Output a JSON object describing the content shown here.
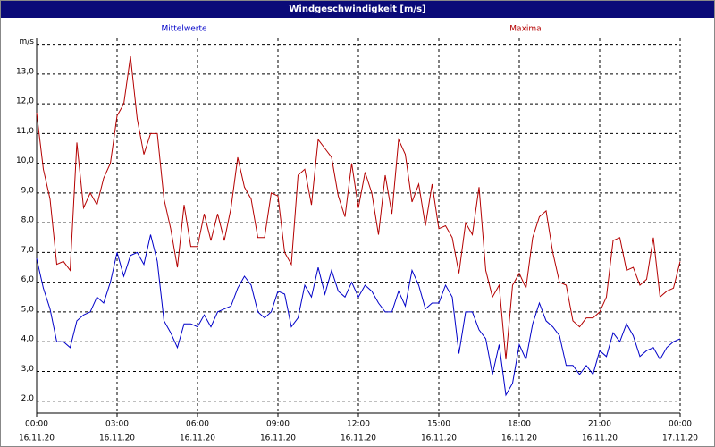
{
  "chart_data": {
    "type": "line",
    "title": "Windgeschwindigkeit [m/s]",
    "x": [
      0,
      0.25,
      0.5,
      0.75,
      1,
      1.25,
      1.5,
      1.75,
      2,
      2.25,
      2.5,
      2.75,
      3,
      3.25,
      3.5,
      3.75,
      4,
      4.25,
      4.5,
      4.75,
      5,
      5.25,
      5.5,
      5.75,
      6,
      6.25,
      6.5,
      6.75,
      7,
      7.25,
      7.5,
      7.75,
      8,
      8.25,
      8.5,
      8.75,
      9,
      9.25,
      9.5,
      9.75,
      10,
      10.25,
      10.5,
      10.75,
      11,
      11.25,
      11.5,
      11.75,
      12,
      12.25,
      12.5,
      12.75,
      13,
      13.25,
      13.5,
      13.75,
      14,
      14.25,
      14.5,
      14.75,
      15,
      15.25,
      15.5,
      15.75,
      16,
      16.25,
      16.5,
      16.75,
      17,
      17.25,
      17.5,
      17.75,
      18,
      18.25,
      18.5,
      18.75,
      19,
      19.25,
      19.5,
      19.75,
      20,
      20.25,
      20.5,
      20.75,
      21,
      21.25,
      21.5,
      21.75,
      22,
      22.25,
      22.5,
      22.75,
      23,
      23.25,
      23.5,
      23.75,
      24
    ],
    "series": [
      {
        "name": "Mittelwerte",
        "color": "#0000c8",
        "values": [
          6.8,
          5.8,
          5.1,
          4.0,
          4.0,
          3.8,
          4.7,
          4.9,
          5.0,
          5.5,
          5.3,
          6.0,
          7.0,
          6.2,
          6.9,
          7.0,
          6.6,
          7.6,
          6.7,
          4.7,
          4.3,
          3.8,
          4.6,
          4.6,
          4.5,
          4.9,
          4.5,
          5.0,
          5.1,
          5.2,
          5.8,
          6.2,
          5.9,
          5.0,
          4.8,
          5.0,
          5.7,
          5.6,
          4.5,
          4.8,
          5.9,
          5.5,
          6.5,
          5.6,
          6.4,
          5.7,
          5.5,
          6.0,
          5.5,
          5.9,
          5.7,
          5.3,
          5.0,
          5.0,
          5.7,
          5.2,
          6.4,
          5.9,
          5.1,
          5.3,
          5.3,
          5.9,
          5.5,
          3.6,
          5.0,
          5.0,
          4.4,
          4.1,
          2.9,
          3.9,
          2.2,
          2.6,
          3.9,
          3.4,
          4.6,
          5.3,
          4.7,
          4.5,
          4.2,
          3.2,
          3.2,
          2.9,
          3.2,
          2.9,
          3.7,
          3.5,
          4.3,
          4.0,
          4.6,
          4.2,
          3.5,
          3.7,
          3.8,
          3.4,
          3.8,
          4.0,
          4.1
        ]
      },
      {
        "name": "Maxima",
        "color": "#b40000",
        "values": [
          11.7,
          9.8,
          8.8,
          6.6,
          6.7,
          6.4,
          10.7,
          8.5,
          9.0,
          8.6,
          9.5,
          10.0,
          11.6,
          12.0,
          13.6,
          11.5,
          10.3,
          11.0,
          11.0,
          8.8,
          7.8,
          6.5,
          8.6,
          7.2,
          7.2,
          8.3,
          7.4,
          8.3,
          7.4,
          8.5,
          10.2,
          9.2,
          8.8,
          7.5,
          7.5,
          9.0,
          8.9,
          7.0,
          6.6,
          9.6,
          9.8,
          8.6,
          10.8,
          10.5,
          10.2,
          8.9,
          8.2,
          10.0,
          8.5,
          9.7,
          9.0,
          7.6,
          9.6,
          8.3,
          10.8,
          10.3,
          8.7,
          9.3,
          7.9,
          9.3,
          7.8,
          7.9,
          7.5,
          6.3,
          8.0,
          7.6,
          9.2,
          6.4,
          5.5,
          5.9,
          3.4,
          5.9,
          6.3,
          5.8,
          7.5,
          8.2,
          8.4,
          7.0,
          6.0,
          5.9,
          4.7,
          4.5,
          4.8,
          4.8,
          5.0,
          5.5,
          7.4,
          7.5,
          6.4,
          6.5,
          5.9,
          6.1,
          7.5,
          5.5,
          5.7,
          5.8,
          6.7
        ]
      }
    ],
    "xlim": [
      0,
      24
    ],
    "xticks": [
      {
        "value": 0,
        "label": "00:00",
        "date": "16.11.20"
      },
      {
        "value": 3,
        "label": "03:00",
        "date": "16.11.20"
      },
      {
        "value": 6,
        "label": "06:00",
        "date": "16.11.20"
      },
      {
        "value": 9,
        "label": "09:00",
        "date": "16.11.20"
      },
      {
        "value": 12,
        "label": "12:00",
        "date": "16.11.20"
      },
      {
        "value": 15,
        "label": "15:00",
        "date": "16.11.20"
      },
      {
        "value": 18,
        "label": "18:00",
        "date": "16.11.20"
      },
      {
        "value": 21,
        "label": "21:00",
        "date": "16.11.20"
      },
      {
        "value": 24,
        "label": "00:00",
        "date": "17.11.20"
      }
    ],
    "ylim": [
      1.6,
      14.2
    ],
    "yticks": [
      {
        "value": 2,
        "label": "2,0"
      },
      {
        "value": 3,
        "label": "3,0"
      },
      {
        "value": 4,
        "label": "4,0"
      },
      {
        "value": 5,
        "label": "5,0"
      },
      {
        "value": 6,
        "label": "6,0"
      },
      {
        "value": 7,
        "label": "7,0"
      },
      {
        "value": 8,
        "label": "8,0"
      },
      {
        "value": 9,
        "label": "9,0"
      },
      {
        "value": 10,
        "label": "10,0"
      },
      {
        "value": 11,
        "label": "11,0"
      },
      {
        "value": 12,
        "label": "12,0"
      },
      {
        "value": 13,
        "label": "13,0"
      },
      {
        "value": 14,
        "label": "m/s"
      }
    ],
    "grid": true
  }
}
